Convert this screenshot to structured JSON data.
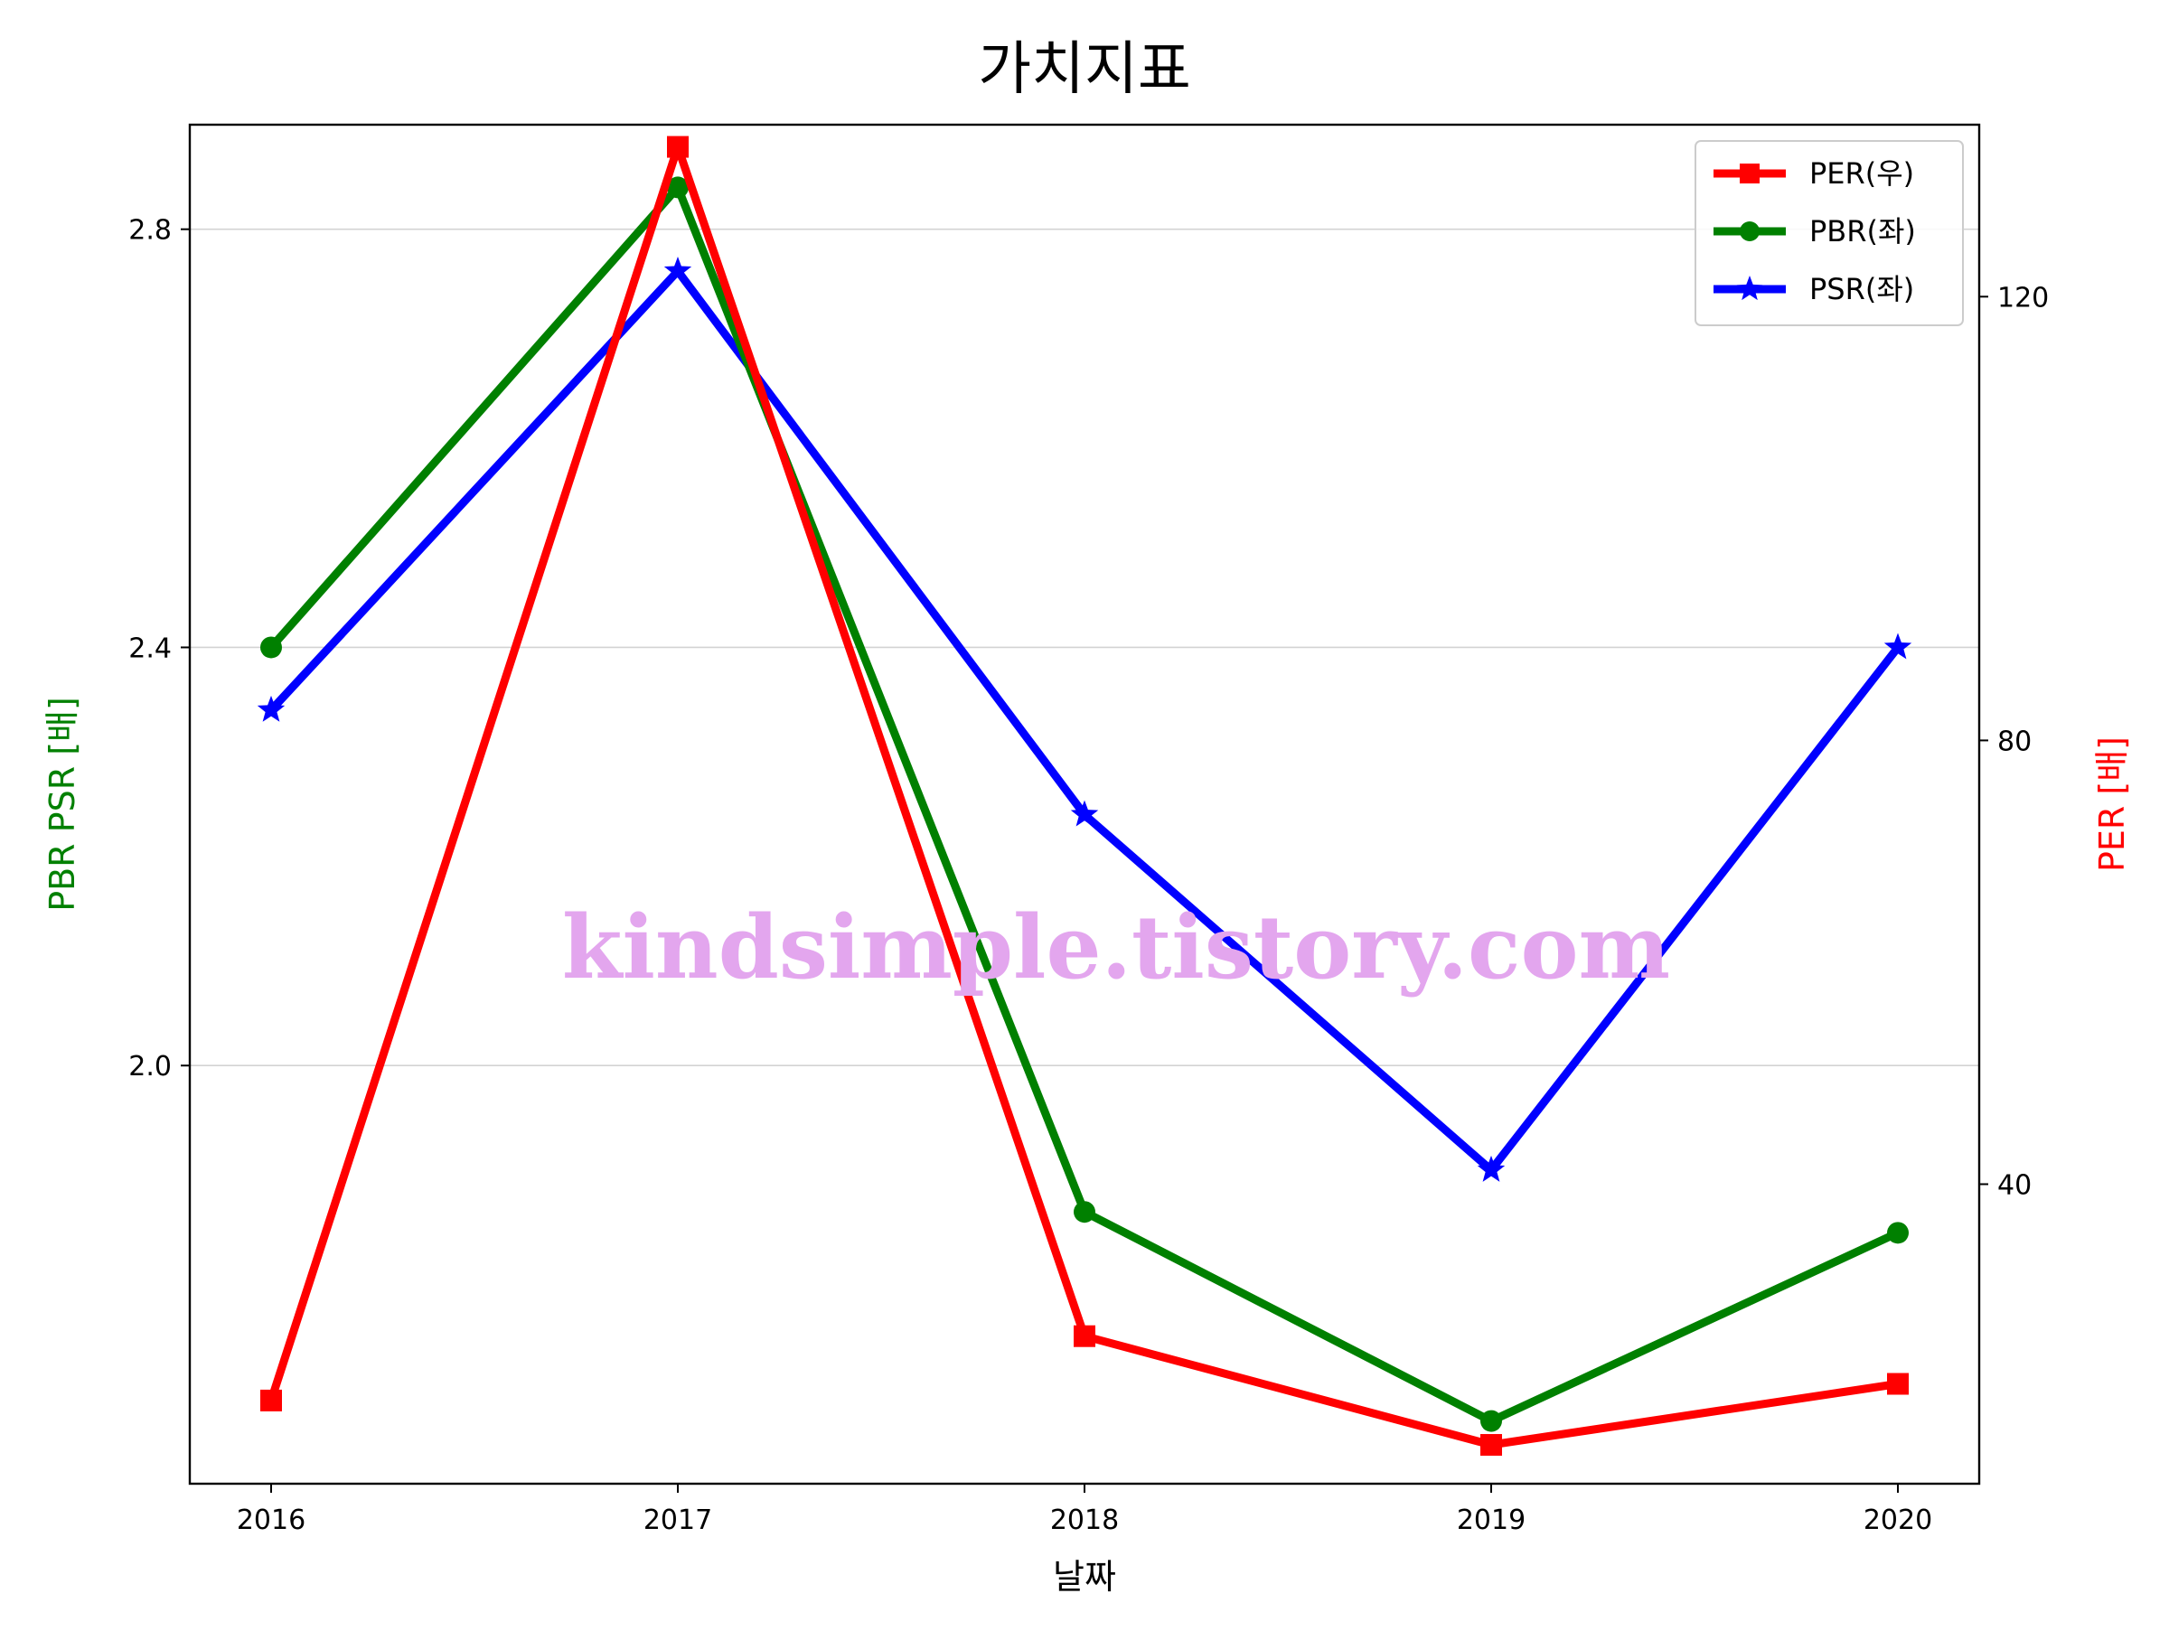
{
  "chart_data": {
    "type": "line",
    "title": "가치지표",
    "xlabel": "날짜",
    "ylabel_left": "PBR PSR [배]",
    "ylabel_right": "PER [배]",
    "ylabel_left_color": "#008000",
    "ylabel_right_color": "#ff0000",
    "categories": [
      "2016",
      "2017",
      "2018",
      "2019",
      "2020"
    ],
    "left_axis": {
      "min": 1.6,
      "max": 2.9,
      "ticks": [
        2.0,
        2.4,
        2.8
      ],
      "tick_labels": [
        "2.0",
        "2.4",
        "2.8"
      ]
    },
    "right_axis": {
      "min": 13,
      "max": 135.5,
      "ticks": [
        40,
        80,
        120
      ],
      "tick_labels": [
        "40",
        "80",
        "120"
      ]
    },
    "grid": "horizontal (left axis)",
    "legend_position": "top-right",
    "series": [
      {
        "name": "PER(우)",
        "axis": "right",
        "color": "#ff0000",
        "marker": "square",
        "values": [
          20.5,
          133.5,
          26.3,
          16.5,
          22.0
        ]
      },
      {
        "name": "PBR(좌)",
        "axis": "left",
        "color": "#008000",
        "marker": "circle",
        "values": [
          2.4,
          2.84,
          1.86,
          1.66,
          1.84
        ]
      },
      {
        "name": "PSR(좌)",
        "axis": "left",
        "color": "#0000ff",
        "marker": "star",
        "values": [
          2.34,
          2.76,
          2.24,
          1.9,
          2.4
        ]
      }
    ],
    "watermark": "kindsimple.tistory.com"
  }
}
